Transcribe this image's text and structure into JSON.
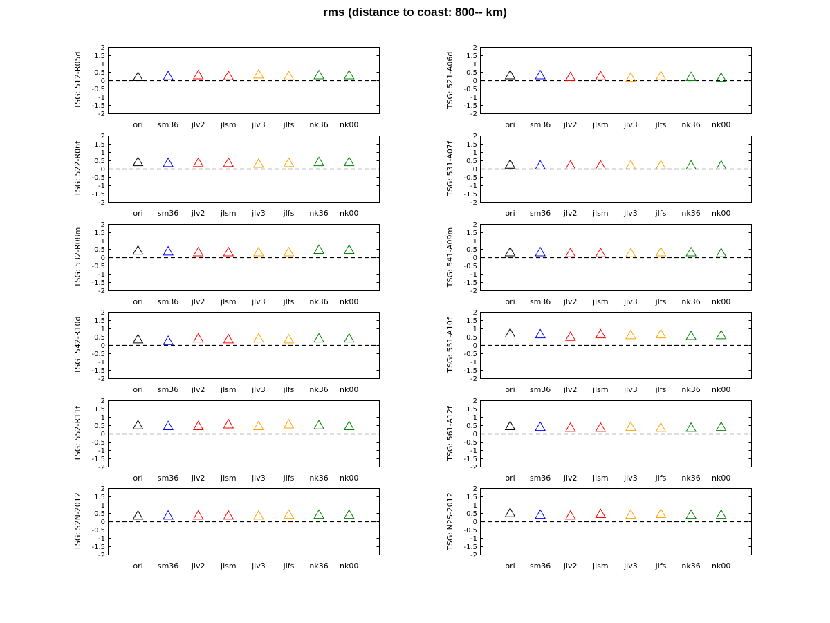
{
  "title": "rms (distance to coast: 800-- km)",
  "chart_data": {
    "type": "scatter",
    "marker": "triangle",
    "ylim": [
      -2,
      2
    ],
    "yticks": [
      "2",
      "1.5",
      "1",
      "0.5",
      "0",
      "-0.5",
      "-1",
      "-1.5",
      "-2"
    ],
    "ytick_values": [
      2,
      1.5,
      1,
      0.5,
      0,
      -0.5,
      -1,
      -1.5,
      -2
    ],
    "reference_line": 0,
    "categories": [
      "ori",
      "sm36",
      "jlv2",
      "jlsm",
      "jlv3",
      "jlfs",
      "nk36",
      "nk00"
    ],
    "colors": [
      "#000000",
      "#0000ff",
      "#ff0000",
      "#ff0000",
      "#ffa500",
      "#ffa500",
      "#008000",
      "#008000"
    ],
    "panels": [
      {
        "ylabel": "TSG: 512-R05d",
        "values": [
          0.2,
          0.25,
          0.3,
          0.25,
          0.35,
          0.25,
          0.3,
          0.3
        ]
      },
      {
        "ylabel": "TSG: 521-A06d",
        "values": [
          0.3,
          0.3,
          0.2,
          0.25,
          0.15,
          0.25,
          0.2,
          0.15
        ]
      },
      {
        "ylabel": "TSG: 522-R06f",
        "values": [
          0.4,
          0.35,
          0.35,
          0.35,
          0.3,
          0.35,
          0.4,
          0.4
        ]
      },
      {
        "ylabel": "TSG: 531-A07f",
        "values": [
          0.25,
          0.2,
          0.2,
          0.2,
          0.2,
          0.2,
          0.2,
          0.2
        ]
      },
      {
        "ylabel": "TSG: 532-R08m",
        "values": [
          0.4,
          0.35,
          0.3,
          0.3,
          0.3,
          0.3,
          0.45,
          0.45
        ]
      },
      {
        "ylabel": "TSG: 541-A09m",
        "values": [
          0.3,
          0.3,
          0.25,
          0.25,
          0.25,
          0.3,
          0.3,
          0.25
        ]
      },
      {
        "ylabel": "TSG: 542-R10d",
        "values": [
          0.35,
          0.25,
          0.4,
          0.35,
          0.4,
          0.35,
          0.4,
          0.4
        ]
      },
      {
        "ylabel": "TSG: 551-A10f",
        "values": [
          0.7,
          0.65,
          0.5,
          0.65,
          0.6,
          0.65,
          0.55,
          0.6
        ]
      },
      {
        "ylabel": "TSG: 552-R11f",
        "values": [
          0.5,
          0.45,
          0.45,
          0.55,
          0.45,
          0.55,
          0.5,
          0.45
        ]
      },
      {
        "ylabel": "TSG: 561-A12f",
        "values": [
          0.45,
          0.4,
          0.35,
          0.35,
          0.4,
          0.35,
          0.35,
          0.4
        ]
      },
      {
        "ylabel": "TSG: S2N-2012",
        "values": [
          0.35,
          0.35,
          0.35,
          0.35,
          0.35,
          0.4,
          0.4,
          0.4
        ]
      },
      {
        "ylabel": "TSG: N2S-2012",
        "values": [
          0.5,
          0.4,
          0.35,
          0.45,
          0.4,
          0.45,
          0.4,
          0.4
        ]
      }
    ]
  }
}
